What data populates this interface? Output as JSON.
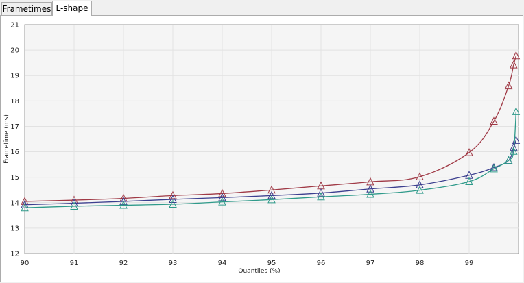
{
  "tabs": [
    {
      "label": "Frametimes",
      "active": false
    },
    {
      "label": "L-shape",
      "active": true
    }
  ],
  "chart_data": {
    "type": "line",
    "title": "",
    "xlabel": "Quantiles (%)",
    "ylabel": "Frametime (ms)",
    "xlim": [
      90,
      100
    ],
    "ylim": [
      12,
      21
    ],
    "xticks": [
      90,
      91,
      92,
      93,
      94,
      95,
      96,
      97,
      98,
      99
    ],
    "yticks": [
      12,
      13,
      14,
      15,
      16,
      17,
      18,
      19,
      20,
      21
    ],
    "grid": true,
    "marker": "triangle",
    "series": [
      {
        "name": "red",
        "color": "#a03a46",
        "x": [
          90,
          91,
          92,
          93,
          94,
          95,
          96,
          97,
          98,
          99,
          99.5,
          99.8,
          99.9,
          99.95
        ],
        "y": [
          14.05,
          14.1,
          14.17,
          14.28,
          14.36,
          14.5,
          14.66,
          14.82,
          15.02,
          15.97,
          17.2,
          18.6,
          19.42,
          19.78
        ]
      },
      {
        "name": "blue",
        "color": "#3c3f8f",
        "x": [
          90,
          91,
          92,
          93,
          94,
          95,
          96,
          97,
          98,
          99,
          99.5,
          99.8,
          99.9,
          99.95
        ],
        "y": [
          13.92,
          13.98,
          14.05,
          14.13,
          14.2,
          14.28,
          14.38,
          14.54,
          14.7,
          15.08,
          15.38,
          15.66,
          16.18,
          16.45
        ]
      },
      {
        "name": "teal",
        "color": "#2f9a8a",
        "x": [
          90,
          91,
          92,
          93,
          94,
          95,
          96,
          97,
          98,
          99,
          99.5,
          99.8,
          99.9,
          99.95
        ],
        "y": [
          13.8,
          13.86,
          13.9,
          13.94,
          14.03,
          14.12,
          14.23,
          14.33,
          14.49,
          14.83,
          15.33,
          15.66,
          16.02,
          17.58
        ]
      }
    ]
  }
}
